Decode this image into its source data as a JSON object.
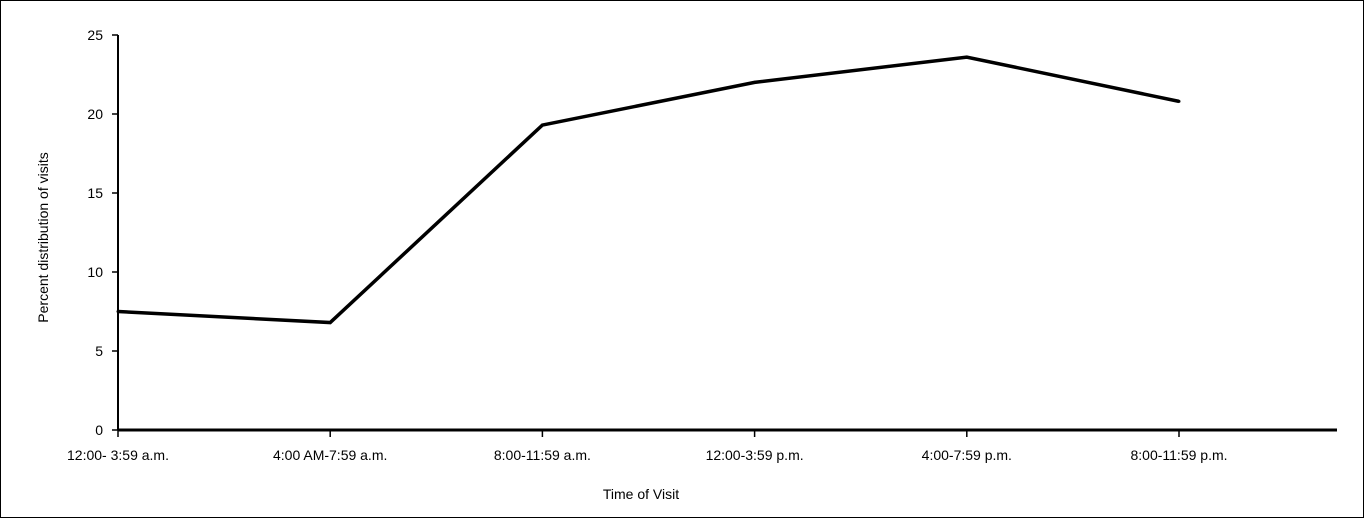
{
  "chart_data": {
    "type": "line",
    "title": "",
    "xlabel": "Time of Visit",
    "ylabel": "Percent distribution of visits",
    "categories": [
      "12:00- 3:59 a.m.",
      "4:00 AM-7:59 a.m.",
      "8:00-11:59 a.m.",
      "12:00-3:59 p.m.",
      "4:00-7:59 p.m.",
      "8:00-11:59 p.m."
    ],
    "series": [
      {
        "values": [
          7.5,
          6.8,
          19.3,
          22.0,
          23.6,
          20.8
        ]
      }
    ],
    "ylim": [
      0,
      25
    ],
    "yticks": [
      0,
      5,
      10,
      15,
      20,
      25
    ],
    "grid": false,
    "line_color": "#000000"
  }
}
